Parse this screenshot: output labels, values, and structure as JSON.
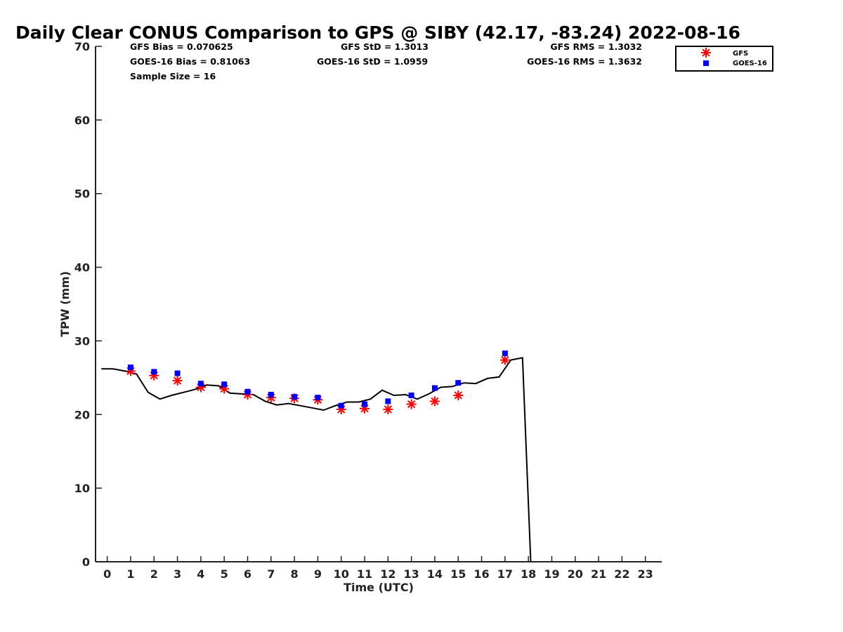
{
  "chart_data": {
    "type": "scatter",
    "title": "Daily Clear CONUS Comparison to GPS @ SIBY (42.17, -83.24) 2022-08-16",
    "xlabel": "Time (UTC)",
    "ylabel": "TPW (mm)",
    "xlim": [
      -0.5,
      23.7
    ],
    "ylim": [
      0,
      70
    ],
    "xticks": [
      0,
      1,
      2,
      3,
      4,
      5,
      6,
      7,
      8,
      9,
      10,
      11,
      12,
      13,
      14,
      15,
      16,
      17,
      18,
      19,
      20,
      21,
      22,
      23
    ],
    "yticks": [
      0,
      10,
      20,
      30,
      40,
      50,
      60,
      70
    ],
    "grid": false,
    "legend_position": "top-right, outside plot area",
    "stats": {
      "gfs_bias": "GFS Bias = 0.070625",
      "goes_bias": "GOES-16 Bias = 0.81063",
      "sample_size": "Sample Size = 16",
      "gfs_std": "GFS StD = 1.3013",
      "goes_std": "GOES-16 StD = 1.0959",
      "gfs_rms": "GFS RMS = 1.3032",
      "goes_rms": "GOES-16 RMS = 1.3632"
    },
    "series": [
      {
        "name": "GFS",
        "marker": "asterisk",
        "color": "#ff0000",
        "x": [
          1,
          2,
          3,
          4,
          5,
          6,
          7,
          8,
          9,
          10,
          11,
          12,
          13,
          14,
          15,
          17
        ],
        "y": [
          25.9,
          25.3,
          24.6,
          23.7,
          23.5,
          22.7,
          22.3,
          22.2,
          22.0,
          20.7,
          20.8,
          20.7,
          21.4,
          21.8,
          22.6,
          27.4
        ]
      },
      {
        "name": "GOES-16",
        "marker": "square",
        "color": "#0000ff",
        "x": [
          1,
          2,
          3,
          4,
          5,
          6,
          7,
          8,
          9,
          10,
          11,
          12,
          13,
          14,
          15,
          17
        ],
        "y": [
          26.4,
          25.8,
          25.6,
          24.2,
          24.1,
          23.1,
          22.7,
          22.4,
          22.3,
          21.2,
          21.4,
          21.8,
          22.6,
          23.6,
          24.3,
          28.3
        ]
      },
      {
        "marker": "line",
        "color": "#000000",
        "x": [
          -0.25,
          0.25,
          0.75,
          1.25,
          1.75,
          2.25,
          2.75,
          3.25,
          3.75,
          4.25,
          4.75,
          5.25,
          5.75,
          6.25,
          6.75,
          7.25,
          7.75,
          8.25,
          8.75,
          9.25,
          9.75,
          10.25,
          10.75,
          11.25,
          11.75,
          12.25,
          12.75,
          13.25,
          13.75,
          14.25,
          14.75,
          15.25,
          15.75,
          16.25,
          16.75,
          17.25,
          17.75,
          18.1
        ],
        "y": [
          26.2,
          26.2,
          25.9,
          25.5,
          23.0,
          22.1,
          22.6,
          23.0,
          23.4,
          24.0,
          23.9,
          22.9,
          22.8,
          22.7,
          21.8,
          21.3,
          21.5,
          21.2,
          20.9,
          20.6,
          21.2,
          21.7,
          21.7,
          22.1,
          23.3,
          22.6,
          22.7,
          22.1,
          22.8,
          23.7,
          23.8,
          24.3,
          24.2,
          24.9,
          25.1,
          27.4,
          27.7,
          0
        ]
      }
    ]
  }
}
